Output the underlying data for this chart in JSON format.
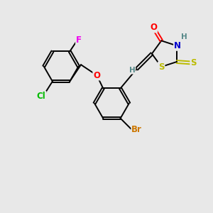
{
  "bg_color": "#e8e8e8",
  "bond_color": "#000000",
  "atom_colors": {
    "O": "#ff0000",
    "N": "#0000cc",
    "S": "#bbbb00",
    "Br": "#cc7700",
    "Cl": "#00bb00",
    "F": "#ee00ee",
    "H": "#558888",
    "C": "#000000"
  },
  "font_size": 8.5,
  "fig_size": [
    3.0,
    3.0
  ],
  "dpi": 100
}
